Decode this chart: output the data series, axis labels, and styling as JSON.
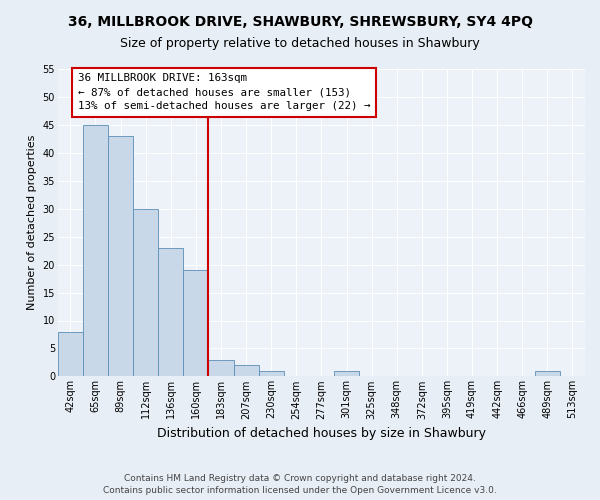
{
  "title": "36, MILLBROOK DRIVE, SHAWBURY, SHREWSBURY, SY4 4PQ",
  "subtitle": "Size of property relative to detached houses in Shawbury",
  "xlabel": "Distribution of detached houses by size in Shawbury",
  "ylabel": "Number of detached properties",
  "categories": [
    "42sqm",
    "65sqm",
    "89sqm",
    "112sqm",
    "136sqm",
    "160sqm",
    "183sqm",
    "207sqm",
    "230sqm",
    "254sqm",
    "277sqm",
    "301sqm",
    "325sqm",
    "348sqm",
    "372sqm",
    "395sqm",
    "419sqm",
    "442sqm",
    "466sqm",
    "489sqm",
    "513sqm"
  ],
  "values": [
    8,
    45,
    43,
    30,
    23,
    19,
    3,
    2,
    1,
    0,
    0,
    1,
    0,
    0,
    0,
    0,
    0,
    0,
    0,
    1,
    0
  ],
  "bar_color": "#c8d8e8",
  "bar_edge_color": "#5b8db8",
  "vline_bar_index": 5,
  "vline_color": "#cc0000",
  "annotation_text": "36 MILLBROOK DRIVE: 163sqm\n← 87% of detached houses are smaller (153)\n13% of semi-detached houses are larger (22) →",
  "annotation_box_color": "#cc0000",
  "ylim": [
    0,
    55
  ],
  "yticks": [
    0,
    5,
    10,
    15,
    20,
    25,
    30,
    35,
    40,
    45,
    50,
    55
  ],
  "footer_line1": "Contains HM Land Registry data © Crown copyright and database right 2024.",
  "footer_line2": "Contains public sector information licensed under the Open Government Licence v3.0.",
  "bg_color": "#e8eef5",
  "plot_bg_color": "#edf2f8",
  "grid_color": "#ffffff",
  "title_fontsize": 10,
  "subtitle_fontsize": 9,
  "ylabel_fontsize": 8,
  "xlabel_fontsize": 9,
  "tick_fontsize": 7,
  "footer_fontsize": 6.5
}
